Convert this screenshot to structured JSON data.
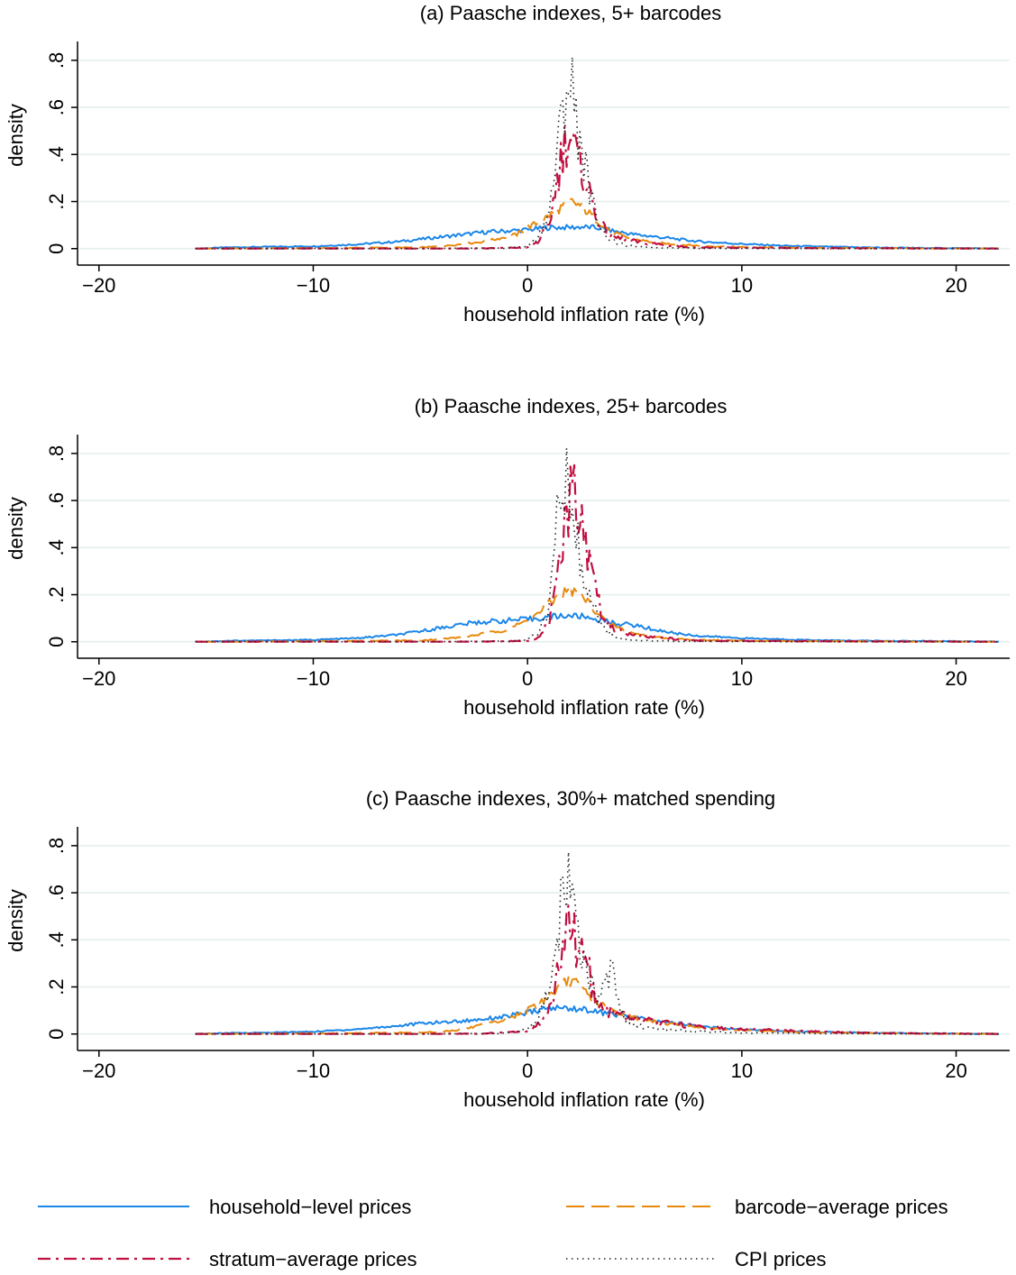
{
  "chart_data": [
    {
      "type": "line",
      "title": "(a) Paasche indexes, 5+ barcodes",
      "xlabel": "household inflation rate (%)",
      "ylabel": "density",
      "xlim": [
        -21,
        22.5
      ],
      "ylim": [
        -0.07,
        0.88
      ],
      "xticks": [
        -20,
        -10,
        0,
        10,
        20
      ],
      "xtick_labels": [
        "−20",
        "−10",
        "0",
        "10",
        "20"
      ],
      "yticks": [
        0,
        0.2,
        0.4,
        0.6,
        0.8
      ],
      "ytick_labels": [
        "0",
        ".2",
        ".4",
        ".6",
        ".8"
      ],
      "grid": true,
      "series": [
        {
          "name": "household-level prices",
          "x": [
            -15.5,
            -14,
            -12,
            -10,
            -8,
            -6,
            -5,
            -4,
            -3,
            -2,
            -1,
            0,
            0.5,
            1,
            1.5,
            2,
            2.5,
            3,
            3.5,
            4,
            5,
            6,
            7,
            8,
            9,
            10,
            12,
            14,
            16,
            18,
            20,
            22
          ],
          "y": [
            0.0,
            0.005,
            0.008,
            0.01,
            0.018,
            0.03,
            0.04,
            0.05,
            0.06,
            0.07,
            0.075,
            0.08,
            0.085,
            0.09,
            0.09,
            0.09,
            0.092,
            0.09,
            0.085,
            0.075,
            0.06,
            0.05,
            0.04,
            0.03,
            0.025,
            0.02,
            0.012,
            0.008,
            0.005,
            0.003,
            0.002,
            0.0
          ]
        },
        {
          "name": "barcode-average prices",
          "x": [
            -15.5,
            -10,
            -5,
            -4,
            -3,
            -2,
            -1,
            -0.5,
            0,
            0.5,
            1,
            1.5,
            2,
            2.5,
            3,
            3.5,
            4,
            4.5,
            5,
            6,
            7,
            8,
            10,
            14,
            18,
            22
          ],
          "y": [
            0.0,
            0.002,
            0.005,
            0.01,
            0.02,
            0.03,
            0.05,
            0.06,
            0.09,
            0.11,
            0.14,
            0.17,
            0.2,
            0.18,
            0.14,
            0.1,
            0.07,
            0.05,
            0.04,
            0.025,
            0.018,
            0.012,
            0.006,
            0.003,
            0.001,
            0.0
          ]
        },
        {
          "name": "stratum-average prices",
          "x": [
            -15.5,
            -5,
            -2,
            0,
            0.5,
            1,
            1.3,
            1.6,
            1.9,
            2.1,
            2.4,
            2.7,
            3,
            3.3,
            3.6,
            4,
            4.5,
            5,
            6,
            7,
            8,
            10,
            14,
            18,
            22
          ],
          "y": [
            0.0,
            0.0,
            0.001,
            0.005,
            0.03,
            0.1,
            0.25,
            0.4,
            0.5,
            0.45,
            0.35,
            0.3,
            0.2,
            0.12,
            0.08,
            0.05,
            0.04,
            0.03,
            0.02,
            0.01,
            0.005,
            0.003,
            0.002,
            0.001,
            0.0
          ]
        },
        {
          "name": "CPI prices",
          "x": [
            -15.5,
            -5,
            -1,
            0,
            0.5,
            1,
            1.3,
            1.6,
            1.8,
            2,
            2.2,
            2.5,
            2.8,
            3,
            3.3,
            3.6,
            4,
            4.5,
            5,
            6,
            8,
            10,
            14,
            22
          ],
          "y": [
            0.0,
            0.0,
            0.002,
            0.01,
            0.05,
            0.15,
            0.35,
            0.55,
            0.7,
            0.72,
            0.6,
            0.45,
            0.3,
            0.2,
            0.12,
            0.06,
            0.03,
            0.015,
            0.008,
            0.004,
            0.002,
            0.001,
            0.0,
            0.0
          ]
        }
      ]
    },
    {
      "type": "line",
      "title": "(b) Paasche indexes, 25+ barcodes",
      "xlabel": "household inflation rate (%)",
      "ylabel": "density",
      "xlim": [
        -21,
        22.5
      ],
      "ylim": [
        -0.07,
        0.88
      ],
      "xticks": [
        -20,
        -10,
        0,
        10,
        20
      ],
      "xtick_labels": [
        "−20",
        "−10",
        "0",
        "10",
        "20"
      ],
      "yticks": [
        0,
        0.2,
        0.4,
        0.6,
        0.8
      ],
      "ytick_labels": [
        "0",
        ".2",
        ".4",
        ".6",
        ".8"
      ],
      "grid": true,
      "series": [
        {
          "name": "household-level prices",
          "x": [
            -15.5,
            -14,
            -12,
            -10,
            -8,
            -6,
            -5,
            -4,
            -3,
            -2,
            -1,
            0,
            0.5,
            1,
            1.5,
            2,
            2.5,
            3,
            3.5,
            4,
            5,
            6,
            7,
            8,
            9,
            10,
            12,
            14,
            16,
            18,
            20,
            22
          ],
          "y": [
            0.0,
            0.004,
            0.006,
            0.008,
            0.015,
            0.03,
            0.045,
            0.06,
            0.075,
            0.085,
            0.09,
            0.095,
            0.1,
            0.105,
            0.11,
            0.11,
            0.108,
            0.1,
            0.09,
            0.08,
            0.07,
            0.05,
            0.035,
            0.025,
            0.02,
            0.015,
            0.01,
            0.006,
            0.004,
            0.003,
            0.002,
            0.0
          ]
        },
        {
          "name": "barcode-average prices",
          "x": [
            -15.5,
            -10,
            -5,
            -4,
            -3,
            -2,
            -1,
            -0.5,
            0,
            0.5,
            1,
            1.5,
            2,
            2.5,
            3,
            3.5,
            4,
            4.5,
            5,
            6,
            7,
            8,
            10,
            14,
            18,
            22
          ],
          "y": [
            0.0,
            0.002,
            0.006,
            0.012,
            0.02,
            0.035,
            0.05,
            0.07,
            0.09,
            0.12,
            0.16,
            0.2,
            0.22,
            0.2,
            0.15,
            0.1,
            0.07,
            0.05,
            0.035,
            0.02,
            0.012,
            0.008,
            0.004,
            0.002,
            0.001,
            0.0
          ]
        },
        {
          "name": "stratum-average prices",
          "x": [
            -15.5,
            -5,
            -2,
            0,
            0.5,
            1,
            1.3,
            1.6,
            1.9,
            2.1,
            2.4,
            2.7,
            3,
            3.3,
            3.6,
            4,
            4.5,
            5,
            6,
            7,
            8,
            10,
            14,
            18,
            22
          ],
          "y": [
            0.0,
            0.0,
            0.001,
            0.003,
            0.02,
            0.08,
            0.2,
            0.4,
            0.55,
            0.62,
            0.55,
            0.4,
            0.28,
            0.17,
            0.1,
            0.06,
            0.04,
            0.03,
            0.02,
            0.01,
            0.005,
            0.003,
            0.002,
            0.001,
            0.0
          ]
        },
        {
          "name": "CPI prices",
          "x": [
            -15.5,
            -5,
            -1,
            0,
            0.5,
            1,
            1.2,
            1.5,
            1.7,
            1.9,
            2.1,
            2.4,
            2.7,
            3,
            3.3,
            3.6,
            4,
            4.5,
            5,
            6,
            8,
            10,
            14,
            22
          ],
          "y": [
            0.0,
            0.0,
            0.002,
            0.01,
            0.04,
            0.15,
            0.35,
            0.6,
            0.73,
            0.7,
            0.55,
            0.4,
            0.28,
            0.18,
            0.1,
            0.05,
            0.025,
            0.012,
            0.007,
            0.003,
            0.002,
            0.001,
            0.0,
            0.0
          ]
        }
      ]
    },
    {
      "type": "line",
      "title": "(c) Paasche indexes, 30%+ matched spending",
      "xlabel": "household inflation rate (%)",
      "ylabel": "density",
      "xlim": [
        -21,
        22.5
      ],
      "ylim": [
        -0.07,
        0.88
      ],
      "xticks": [
        -20,
        -10,
        0,
        10,
        20
      ],
      "xtick_labels": [
        "−20",
        "−10",
        "0",
        "10",
        "20"
      ],
      "yticks": [
        0,
        0.2,
        0.4,
        0.6,
        0.8
      ],
      "ytick_labels": [
        "0",
        ".2",
        ".4",
        ".6",
        ".8"
      ],
      "grid": true,
      "series": [
        {
          "name": "household-level prices",
          "x": [
            -15.5,
            -14,
            -12,
            -10,
            -8,
            -6,
            -5,
            -4,
            -3,
            -2,
            -1,
            0,
            0.5,
            1,
            1.5,
            2,
            2.5,
            3,
            3.5,
            4,
            5,
            6,
            7,
            8,
            9,
            10,
            12,
            14,
            16,
            18,
            20,
            22
          ],
          "y": [
            0.0,
            0.004,
            0.006,
            0.01,
            0.02,
            0.035,
            0.045,
            0.05,
            0.055,
            0.065,
            0.075,
            0.09,
            0.1,
            0.11,
            0.11,
            0.11,
            0.105,
            0.1,
            0.09,
            0.085,
            0.07,
            0.055,
            0.045,
            0.035,
            0.025,
            0.02,
            0.012,
            0.008,
            0.005,
            0.003,
            0.002,
            0.0
          ]
        },
        {
          "name": "barcode-average prices",
          "x": [
            -15.5,
            -10,
            -5,
            -4,
            -3,
            -2,
            -1,
            -0.5,
            0,
            0.5,
            1,
            1.5,
            2,
            2.5,
            3,
            3.5,
            4,
            4.5,
            5,
            6,
            7,
            8,
            10,
            14,
            18,
            22
          ],
          "y": [
            0.0,
            0.002,
            0.006,
            0.01,
            0.02,
            0.04,
            0.06,
            0.08,
            0.1,
            0.13,
            0.16,
            0.2,
            0.23,
            0.2,
            0.15,
            0.12,
            0.1,
            0.08,
            0.07,
            0.05,
            0.04,
            0.03,
            0.015,
            0.006,
            0.002,
            0.0
          ]
        },
        {
          "name": "stratum-average prices",
          "x": [
            -15.5,
            -5,
            -2,
            0,
            0.5,
            1,
            1.3,
            1.6,
            1.9,
            2.1,
            2.4,
            2.7,
            3,
            3.3,
            3.6,
            4,
            4.5,
            5,
            6,
            7,
            8,
            10,
            14,
            18,
            22
          ],
          "y": [
            0.0,
            0.0,
            0.002,
            0.01,
            0.04,
            0.1,
            0.2,
            0.35,
            0.5,
            0.45,
            0.3,
            0.35,
            0.2,
            0.12,
            0.1,
            0.09,
            0.08,
            0.07,
            0.05,
            0.04,
            0.03,
            0.02,
            0.008,
            0.003,
            0.0
          ]
        },
        {
          "name": "CPI prices",
          "x": [
            -15.5,
            -5,
            -1,
            0,
            0.5,
            1,
            1.3,
            1.6,
            1.8,
            2,
            2.2,
            2.5,
            2.8,
            3,
            3.3,
            3.6,
            3.9,
            4.2,
            4.5,
            5,
            6,
            8,
            10,
            14,
            22
          ],
          "y": [
            0.0,
            0.0,
            0.003,
            0.02,
            0.06,
            0.2,
            0.4,
            0.55,
            0.6,
            0.63,
            0.5,
            0.35,
            0.25,
            0.2,
            0.15,
            0.25,
            0.28,
            0.15,
            0.08,
            0.04,
            0.02,
            0.01,
            0.005,
            0.002,
            0.0
          ]
        }
      ]
    }
  ],
  "legend": {
    "position": "bottom",
    "entries": [
      {
        "label": "household−level prices",
        "color": "#1a86e8",
        "style": "solid"
      },
      {
        "label": "barcode−average prices",
        "color": "#e8890c",
        "style": "dash"
      },
      {
        "label": "stratum−average prices",
        "color": "#c01040",
        "style": "dashdot"
      },
      {
        "label": "CPI prices",
        "color": "#222222",
        "style": "dot"
      }
    ]
  },
  "colors": {
    "household": "#1a86e8",
    "barcode": "#e8890c",
    "stratum": "#c01040",
    "cpi": "#222222",
    "grid": "#e6eeee"
  }
}
